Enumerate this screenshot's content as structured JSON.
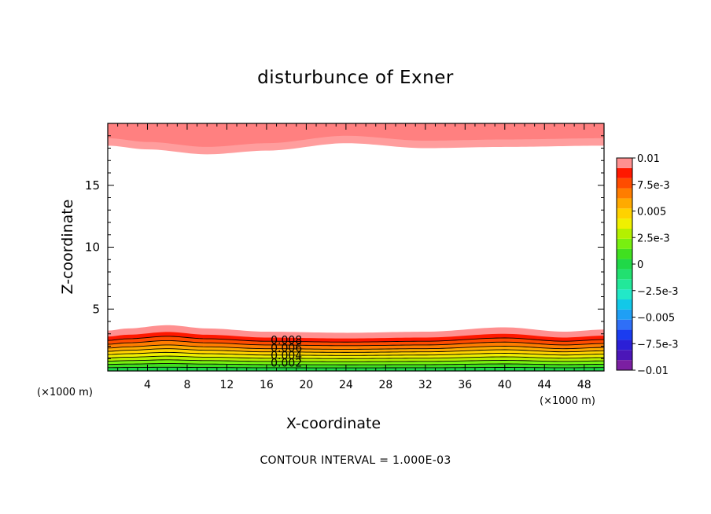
{
  "chart_data": {
    "type": "heatmap",
    "title": "disturbunce of Exner",
    "xlabel": "X-coordinate",
    "ylabel": "Z-coordinate",
    "x_unit_label": "(×1000 m)",
    "footnote": "CONTOUR INTERVAL = 1.000E-03",
    "xlim": [
      0,
      50
    ],
    "ylim": [
      0,
      20
    ],
    "x_ticks": [
      4,
      8,
      12,
      16,
      20,
      24,
      28,
      32,
      36,
      40,
      44,
      48
    ],
    "x_tick_labels": [
      "4",
      "8",
      "12",
      "16",
      "20",
      "24",
      "28",
      "32",
      "36",
      "40",
      "44",
      "48"
    ],
    "y_ticks": [
      5,
      10,
      15
    ],
    "y_tick_labels": [
      "5",
      "10",
      "15"
    ],
    "colorbar": {
      "levels": [
        -0.01,
        -0.009,
        -0.008,
        -0.007,
        -0.006,
        -0.005,
        -0.004,
        -0.003,
        -0.002,
        -0.001,
        0,
        0.001,
        0.002,
        0.003,
        0.004,
        0.005,
        0.006,
        0.007,
        0.008,
        0.009,
        0.01
      ],
      "colors": [
        "#7b1fa2",
        "#4b16b8",
        "#2b1fd6",
        "#1a3cf0",
        "#2f6ff7",
        "#1f9ff5",
        "#12c8e8",
        "#22e8c8",
        "#22e89a",
        "#22e070",
        "#20d848",
        "#40e020",
        "#78f010",
        "#b4f000",
        "#f0f000",
        "#ffd200",
        "#ffaa00",
        "#ff7d00",
        "#ff4c00",
        "#ff1800",
        "#ff9090"
      ],
      "tick_values": [
        0.01,
        0.0075,
        0.005,
        0.0025,
        0,
        -0.0025,
        -0.005,
        -0.0075,
        -0.01
      ],
      "tick_labels": [
        "0.01",
        "7.5e-3",
        "0.005",
        "2.5e-3",
        "0",
        "−2.5e-3",
        "−0.005",
        "−7.5e-3",
        "−0.01"
      ]
    },
    "contour_labels": [
      "0.008",
      "0.006",
      "0.004",
      "0.002"
    ],
    "contour_label_x": 18,
    "contour_interval": 0.001,
    "lower_layer": {
      "note": "bands from bottom: value at z-axis, thickness in z units",
      "top_profile": [
        [
          0,
          3.7
        ],
        [
          2,
          3.9
        ],
        [
          6,
          4.2
        ],
        [
          10,
          3.9
        ],
        [
          16,
          3.6
        ],
        [
          24,
          3.5
        ],
        [
          32,
          3.6
        ],
        [
          40,
          4.0
        ],
        [
          46,
          3.6
        ],
        [
          50,
          3.8
        ]
      ],
      "bands": [
        {
          "value": 0.0005,
          "depth": 0.3
        },
        {
          "value": 0.0015,
          "depth": 0.6
        },
        {
          "value": 0.0025,
          "depth": 0.9
        },
        {
          "value": 0.0035,
          "depth": 1.2
        },
        {
          "value": 0.0045,
          "depth": 1.5
        },
        {
          "value": 0.0055,
          "depth": 1.8
        },
        {
          "value": 0.0065,
          "depth": 2.1
        },
        {
          "value": 0.0075,
          "depth": 2.45
        },
        {
          "value": 0.0085,
          "depth": 2.8
        },
        {
          "value": 0.0095,
          "depth": 3.15
        },
        {
          "value": 0.0105,
          "depth": 3.7
        }
      ]
    },
    "upper_layer": {
      "bottom_profile": [
        [
          0,
          18.2
        ],
        [
          4,
          17.9
        ],
        [
          10,
          17.5
        ],
        [
          16,
          17.8
        ],
        [
          24,
          18.4
        ],
        [
          32,
          18.0
        ],
        [
          40,
          18.1
        ],
        [
          50,
          18.2
        ]
      ],
      "bands": [
        {
          "value": 0.0105,
          "offset": 0.0
        },
        {
          "value": 0.0115,
          "offset": 0.6
        }
      ]
    }
  }
}
